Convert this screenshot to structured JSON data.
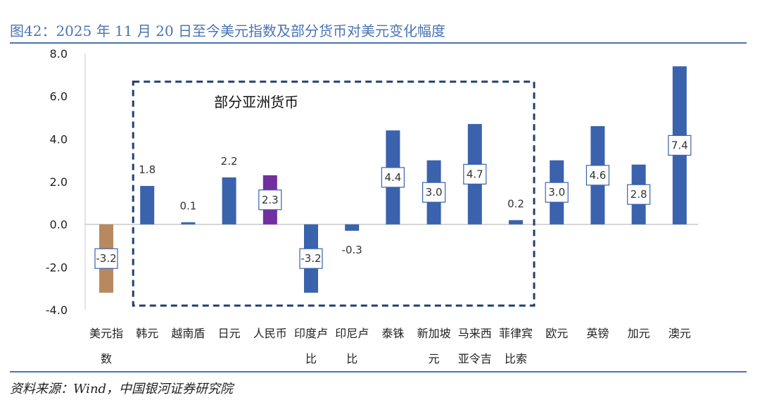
{
  "title": "图42：2025 年 11 月 20 日至今美元指数及部分货币对美元变化幅度",
  "source": "资料来源：Wind，中国银河证券研究院",
  "chart_data": {
    "type": "bar",
    "categories": [
      "美元指数",
      "韩元",
      "越南盾",
      "日元",
      "人民币",
      "印度卢比",
      "印尼卢比",
      "泰铢",
      "新加坡元",
      "马来西亚令吉",
      "菲律宾比索",
      "欧元",
      "英镑",
      "加元",
      "澳元"
    ],
    "category_lines": [
      [
        "美元指",
        "数"
      ],
      [
        "韩元"
      ],
      [
        "越南盾"
      ],
      [
        "日元"
      ],
      [
        "人民币"
      ],
      [
        "印度卢",
        "比"
      ],
      [
        "印尼卢",
        "比"
      ],
      [
        "泰铢"
      ],
      [
        "新加坡",
        "元"
      ],
      [
        "马来西",
        "亚令吉"
      ],
      [
        "菲律宾",
        "比索"
      ],
      [
        "欧元"
      ],
      [
        "英镑"
      ],
      [
        "加元"
      ],
      [
        "澳元"
      ]
    ],
    "values": [
      -3.2,
      1.8,
      0.1,
      2.2,
      2.3,
      -3.2,
      -0.3,
      4.4,
      3.0,
      4.7,
      0.2,
      3.0,
      4.6,
      2.8,
      7.4
    ],
    "value_labels": [
      "-3.2",
      "1.8",
      "0.1",
      "2.2",
      "2.3",
      "-3.2",
      "-0.3",
      "4.4",
      "3.0",
      "4.7",
      "0.2",
      "3.0",
      "4.6",
      "2.8",
      "7.4"
    ],
    "colors": [
      "#b8895e",
      "#3a62ad",
      "#3a62ad",
      "#3a62ad",
      "#7030a0",
      "#3a62ad",
      "#3a62ad",
      "#3a62ad",
      "#3a62ad",
      "#3a62ad",
      "#3a62ad",
      "#3a62ad",
      "#3a62ad",
      "#3a62ad",
      "#3a62ad"
    ],
    "label_inside": [
      true,
      false,
      false,
      false,
      true,
      true,
      false,
      true,
      true,
      true,
      false,
      true,
      true,
      true,
      true
    ],
    "ylim": [
      -4.0,
      8.0
    ],
    "yticks": [
      "-4.0",
      "-2.0",
      "0.0",
      "2.0",
      "4.0",
      "6.0",
      "8.0"
    ],
    "grid": false,
    "annotation": {
      "text": "部分亚洲货币",
      "from_index": 1,
      "to_index": 10
    }
  }
}
